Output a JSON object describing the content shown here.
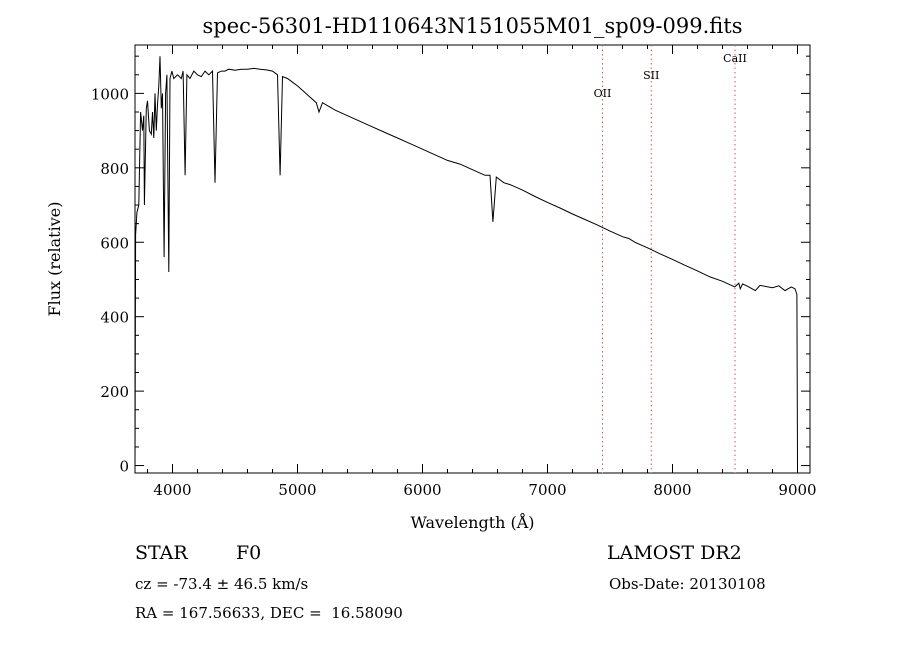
{
  "chart_data": {
    "type": "line",
    "title": "spec-56301-HD110643N151055M01_sp09-099.fits",
    "xlabel": "Wavelength (Å)",
    "ylabel": "Flux (relative)",
    "xlim": [
      3700,
      9100
    ],
    "ylim": [
      -20,
      1130
    ],
    "x_ticks": [
      4000,
      5000,
      6000,
      7000,
      8000,
      9000
    ],
    "y_ticks": [
      0,
      200,
      400,
      600,
      800,
      1000
    ],
    "grid": false,
    "series": [
      {
        "x": [
          3700,
          3705,
          3715,
          3730,
          3745,
          3760,
          3770,
          3775,
          3790,
          3800,
          3815,
          3830,
          3840,
          3850,
          3860,
          3870,
          3880,
          3890,
          3900,
          3910,
          3920,
          3933,
          3945,
          3955,
          3970,
          3980,
          3995,
          4010,
          4040,
          4070,
          4085,
          4101,
          4115,
          4140,
          4170,
          4200,
          4230,
          4260,
          4290,
          4320,
          4340,
          4360,
          4390,
          4420,
          4450,
          4500,
          4550,
          4600,
          4650,
          4700,
          4750,
          4800,
          4840,
          4861,
          4880,
          4920,
          4960,
          5000,
          5050,
          5100,
          5150,
          5172,
          5200,
          5300,
          5400,
          5500,
          5600,
          5700,
          5800,
          5900,
          6000,
          6100,
          6200,
          6300,
          6400,
          6500,
          6540,
          6563,
          6590,
          6650,
          6700,
          6800,
          6900,
          7000,
          7100,
          7200,
          7300,
          7400,
          7500,
          7600,
          7650,
          7700,
          7800,
          7900,
          8000,
          8100,
          8200,
          8300,
          8400,
          8498,
          8530,
          8542,
          8560,
          8600,
          8662,
          8700,
          8800,
          8850,
          8900,
          8950,
          8980,
          8995,
          9000
        ],
        "values": [
          0,
          620,
          680,
          700,
          950,
          900,
          940,
          700,
          960,
          980,
          900,
          890,
          950,
          880,
          1000,
          900,
          970,
          1020,
          1100,
          960,
          1000,
          560,
          1000,
          1050,
          520,
          1040,
          1060,
          1040,
          1050,
          1040,
          1060,
          780,
          1050,
          1040,
          1060,
          1050,
          1045,
          1060,
          1050,
          1060,
          760,
          1055,
          1060,
          1060,
          1065,
          1062,
          1065,
          1065,
          1067,
          1065,
          1063,
          1060,
          1050,
          780,
          1045,
          1040,
          1030,
          1020,
          1005,
          990,
          975,
          950,
          975,
          955,
          940,
          925,
          910,
          895,
          880,
          865,
          850,
          835,
          820,
          810,
          795,
          780,
          780,
          655,
          775,
          760,
          755,
          740,
          723,
          707,
          692,
          676,
          661,
          646,
          630,
          615,
          610,
          600,
          585,
          569,
          554,
          538,
          523,
          507,
          495,
          480,
          490,
          475,
          488,
          482,
          470,
          484,
          478,
          483,
          470,
          480,
          475,
          460,
          0
        ]
      }
    ],
    "vlines": [
      {
        "x": 7440,
        "label": "OII"
      },
      {
        "x": 7830,
        "label": "SII"
      },
      {
        "x": 8500,
        "label": "CaII"
      }
    ]
  },
  "info": {
    "object_class": "STAR",
    "subclass": "F0",
    "survey": "LAMOST DR2",
    "cz": "cz = -73.4 ± 46.5 km/s",
    "obs_date": "Obs-Date: 20130108",
    "coords": "RA = 167.56633, DEC =  16.58090"
  },
  "colors": {
    "line": "#000000",
    "vline": "#d9534f",
    "axis": "#000000"
  }
}
